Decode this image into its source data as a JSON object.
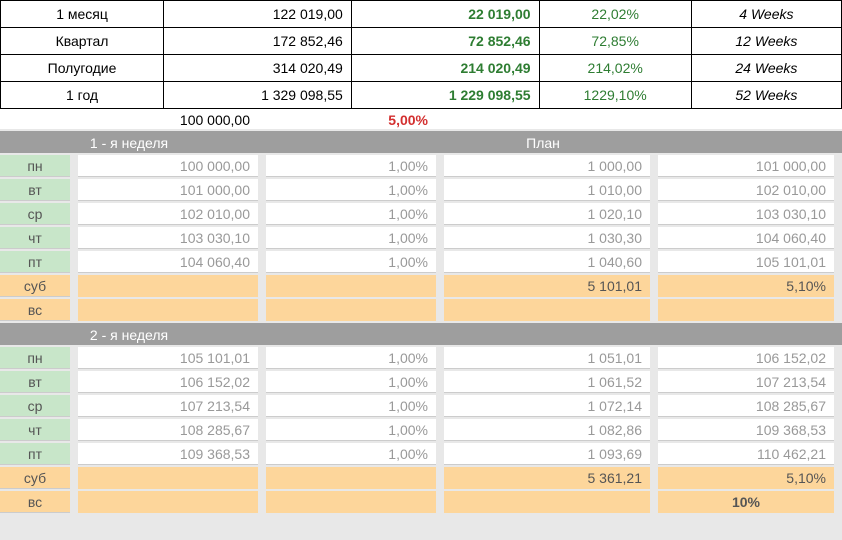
{
  "summary": {
    "rows": [
      {
        "label": "1 месяц",
        "amount": "122 019,00",
        "profit": "22 019,00",
        "pct": "22,02%",
        "weeks": "4 Weeks"
      },
      {
        "label": "Квартал",
        "amount": "172 852,46",
        "profit": "72 852,46",
        "pct": "72,85%",
        "weeks": "12 Weeks"
      },
      {
        "label": "Полугодие",
        "amount": "314 020,49",
        "profit": "214 020,49",
        "pct": "214,02%",
        "weeks": "24 Weeks"
      },
      {
        "label": "1 год",
        "amount": "1 329 098,55",
        "profit": "1 229 098,55",
        "pct": "1229,10%",
        "weeks": "52 Weeks"
      }
    ],
    "base_amount": "100 000,00",
    "base_pct": "5,00%",
    "base_pct_color": "#d32f2f"
  },
  "column_widths": {
    "c1": 70,
    "c2": 180,
    "c3": 170,
    "c4": 206,
    "c5": 176,
    "gap": 8
  },
  "weeks": [
    {
      "title_left": "1 - я неделя",
      "title_right": "План",
      "rows": [
        {
          "day": "пн",
          "c2": "100 000,00",
          "c3": "1,00%",
          "c4": "1 000,00",
          "c5": "101 000,00",
          "type": "wd"
        },
        {
          "day": "вт",
          "c2": "101 000,00",
          "c3": "1,00%",
          "c4": "1 010,00",
          "c5": "102 010,00",
          "type": "wd"
        },
        {
          "day": "ср",
          "c2": "102 010,00",
          "c3": "1,00%",
          "c4": "1 020,10",
          "c5": "103 030,10",
          "type": "wd"
        },
        {
          "day": "чт",
          "c2": "103 030,10",
          "c3": "1,00%",
          "c4": "1 030,30",
          "c5": "104 060,40",
          "type": "wd"
        },
        {
          "day": "пт",
          "c2": "104 060,40",
          "c3": "1,00%",
          "c4": "1 040,60",
          "c5": "105 101,01",
          "type": "wd"
        },
        {
          "day": "суб",
          "c2": "",
          "c3": "",
          "c4": "5 101,01",
          "c5": "5,10%",
          "type": "we"
        },
        {
          "day": "вс",
          "c2": "",
          "c3": "",
          "c4": "",
          "c5": "",
          "type": "we"
        }
      ]
    },
    {
      "title_left": "2 - я неделя",
      "title_right": "",
      "rows": [
        {
          "day": "пн",
          "c2": "105 101,01",
          "c3": "1,00%",
          "c4": "1 051,01",
          "c5": "106 152,02",
          "type": "wd"
        },
        {
          "day": "вт",
          "c2": "106 152,02",
          "c3": "1,00%",
          "c4": "1 061,52",
          "c5": "107 213,54",
          "type": "wd"
        },
        {
          "day": "ср",
          "c2": "107 213,54",
          "c3": "1,00%",
          "c4": "1 072,14",
          "c5": "108 285,67",
          "type": "wd"
        },
        {
          "day": "чт",
          "c2": "108 285,67",
          "c3": "1,00%",
          "c4": "1 082,86",
          "c5": "109 368,53",
          "type": "wd"
        },
        {
          "day": "пт",
          "c2": "109 368,53",
          "c3": "1,00%",
          "c4": "1 093,69",
          "c5": "110 462,21",
          "type": "wd"
        },
        {
          "day": "суб",
          "c2": "",
          "c3": "",
          "c4": "5 361,21",
          "c5": "5,10%",
          "type": "we"
        },
        {
          "day": "вс",
          "c2": "",
          "c3": "",
          "c4": "",
          "c5": "10%",
          "type": "we",
          "c5_bold": true
        }
      ]
    }
  ]
}
